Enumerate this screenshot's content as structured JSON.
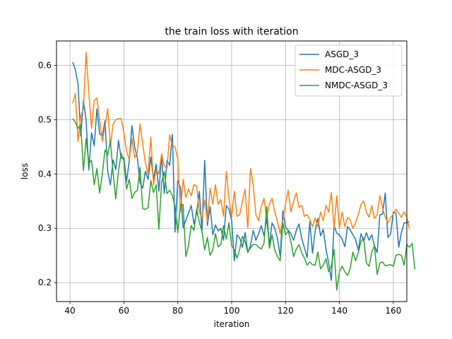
{
  "chart_data": {
    "type": "line",
    "title": "the train loss with iteration",
    "xlabel": "iteration",
    "ylabel": "loss",
    "xlim": [
      35,
      165
    ],
    "ylim": [
      0.165,
      0.645
    ],
    "xticks": [
      40,
      60,
      80,
      100,
      120,
      140,
      160
    ],
    "yticks": [
      0.2,
      0.3,
      0.4,
      0.5,
      0.6
    ],
    "grid": true,
    "legend_position": "top-right",
    "x_start": 41,
    "series": [
      {
        "name": "ASGD_3",
        "color": "#1f77b4",
        "values": [
          0.606,
          0.592,
          0.565,
          0.47,
          0.536,
          0.498,
          0.407,
          0.476,
          0.452,
          0.52,
          0.474,
          0.47,
          0.498,
          0.405,
          0.38,
          0.426,
          0.408,
          0.462,
          0.429,
          0.43,
          0.386,
          0.424,
          0.489,
          0.45,
          0.43,
          0.384,
          0.374,
          0.405,
          0.39,
          0.431,
          0.391,
          0.418,
          0.368,
          0.433,
          0.364,
          0.425,
          0.416,
          0.473,
          0.293,
          0.388,
          0.375,
          0.301,
          0.315,
          0.328,
          0.342,
          0.308,
          0.327,
          0.368,
          0.295,
          0.425,
          0.305,
          0.34,
          0.288,
          0.306,
          0.295,
          0.3,
          0.278,
          0.342,
          0.335,
          0.315,
          0.24,
          0.288,
          0.282,
          0.265,
          0.292,
          0.255,
          0.268,
          0.296,
          0.278,
          0.29,
          0.305,
          0.286,
          0.318,
          0.27,
          0.31,
          0.3,
          0.282,
          0.248,
          0.332,
          0.302,
          0.296,
          0.29,
          0.278,
          0.296,
          0.308,
          0.281,
          0.264,
          0.246,
          0.312,
          0.254,
          0.296,
          0.318,
          0.286,
          0.298,
          0.262,
          0.236,
          0.204,
          0.305,
          0.291,
          0.288,
          0.28,
          0.266,
          0.303,
          0.297,
          0.288,
          0.279,
          0.26,
          0.29,
          0.276,
          0.292,
          0.278,
          0.288,
          0.268,
          0.255,
          0.325,
          0.326,
          0.365,
          0.283,
          0.29,
          0.33,
          0.328,
          0.265,
          0.292,
          0.31,
          0.31,
          0.312
        ]
      },
      {
        "name": "MDC-ASGD_3",
        "color": "#ff7f0e",
        "values": [
          0.53,
          0.548,
          0.46,
          0.506,
          0.52,
          0.624,
          0.55,
          0.484,
          0.535,
          0.54,
          0.5,
          0.46,
          0.488,
          0.52,
          0.452,
          0.492,
          0.5,
          0.502,
          0.502,
          0.476,
          0.443,
          0.426,
          0.465,
          0.43,
          0.44,
          0.492,
          0.455,
          0.42,
          0.4,
          0.468,
          0.38,
          0.408,
          0.4,
          0.437,
          0.415,
          0.41,
          0.472,
          0.452,
          0.45,
          0.428,
          0.33,
          0.39,
          0.357,
          0.372,
          0.36,
          0.38,
          0.378,
          0.33,
          0.318,
          0.352,
          0.312,
          0.374,
          0.344,
          0.38,
          0.344,
          0.353,
          0.322,
          0.405,
          0.355,
          0.32,
          0.368,
          0.322,
          0.325,
          0.349,
          0.372,
          0.3,
          0.41,
          0.38,
          0.325,
          0.314,
          0.34,
          0.355,
          0.32,
          0.345,
          0.355,
          0.33,
          0.312,
          0.29,
          0.315,
          0.345,
          0.37,
          0.33,
          0.35,
          0.365,
          0.338,
          0.342,
          0.322,
          0.325,
          0.316,
          0.303,
          0.319,
          0.303,
          0.33,
          0.314,
          0.342,
          0.33,
          0.366,
          0.3,
          0.36,
          0.3,
          0.33,
          0.303,
          0.32,
          0.315,
          0.3,
          0.31,
          0.325,
          0.344,
          0.35,
          0.33,
          0.32,
          0.342,
          0.318,
          0.325,
          0.36,
          0.338,
          0.32,
          0.31,
          0.32,
          0.326,
          0.335,
          0.328,
          0.32,
          0.33,
          0.32,
          0.298
        ]
      },
      {
        "name": "NMDC-ASGD_3",
        "color": "#2ca02c",
        "values": [
          0.502,
          0.495,
          0.484,
          0.49,
          0.406,
          0.465,
          0.42,
          0.425,
          0.38,
          0.41,
          0.365,
          0.4,
          0.444,
          0.435,
          0.462,
          0.402,
          0.354,
          0.405,
          0.438,
          0.424,
          0.372,
          0.39,
          0.355,
          0.366,
          0.37,
          0.412,
          0.336,
          0.335,
          0.338,
          0.388,
          0.366,
          0.38,
          0.298,
          0.385,
          0.404,
          0.364,
          0.37,
          0.36,
          0.34,
          0.292,
          0.342,
          0.344,
          0.248,
          0.268,
          0.305,
          0.296,
          0.335,
          0.311,
          0.294,
          0.26,
          0.283,
          0.25,
          0.26,
          0.29,
          0.266,
          0.27,
          0.305,
          0.28,
          0.31,
          0.268,
          0.26,
          0.245,
          0.262,
          0.285,
          0.275,
          0.256,
          0.264,
          0.27,
          0.27,
          0.265,
          0.262,
          0.272,
          0.34,
          0.263,
          0.288,
          0.26,
          0.248,
          0.24,
          0.31,
          0.288,
          0.295,
          0.275,
          0.248,
          0.262,
          0.27,
          0.255,
          0.245,
          0.232,
          0.238,
          0.233,
          0.232,
          0.256,
          0.225,
          0.232,
          0.244,
          0.22,
          0.23,
          0.261,
          0.186,
          0.22,
          0.23,
          0.22,
          0.213,
          0.226,
          0.256,
          0.24,
          0.255,
          0.276,
          0.282,
          0.236,
          0.23,
          0.256,
          0.268,
          0.215,
          0.236,
          0.238,
          0.231,
          0.232,
          0.233,
          0.23,
          0.25,
          0.252,
          0.25,
          0.232,
          0.27,
          0.265,
          0.272,
          0.224
        ]
      }
    ]
  }
}
